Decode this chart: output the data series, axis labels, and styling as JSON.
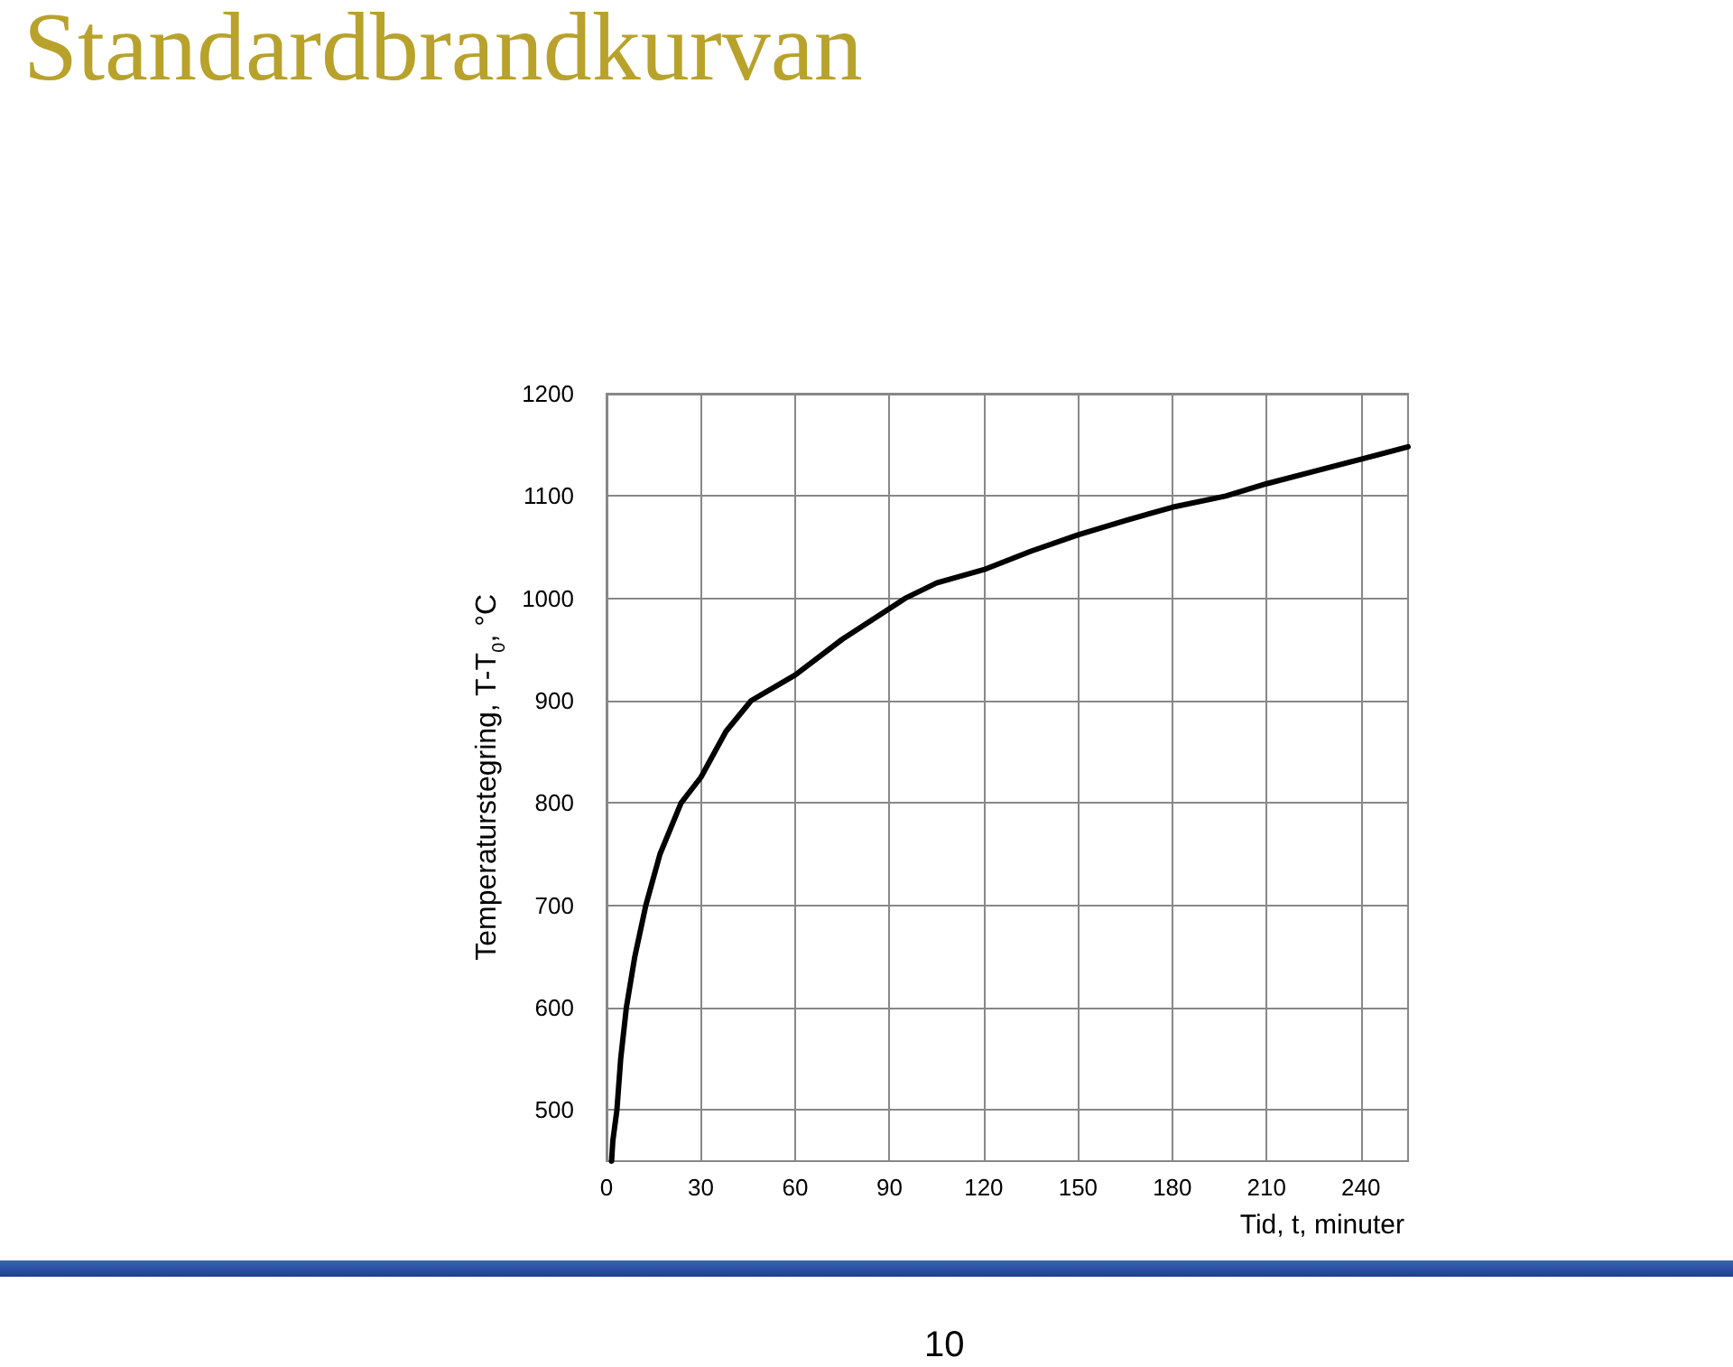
{
  "chart_data": {
    "type": "line",
    "title": "Standardbrandkurvan",
    "xlabel": "Tid, t, minuter",
    "ylabel": "Temperaturstegring, T-T$_{0}$, °C",
    "x": [
      1.6,
      2,
      3.3,
      4.5,
      6.3,
      9,
      12.5,
      17,
      23.7,
      30,
      38,
      46,
      60,
      75,
      95,
      105,
      120,
      135,
      150,
      165,
      180,
      197,
      210,
      225,
      240,
      255
    ],
    "series": [
      {
        "color": "#000000",
        "values": [
          450,
          470,
          500,
          550,
          600,
          650,
          700,
          750,
          800,
          825,
          870,
          900,
          925,
          960,
          1000,
          1015,
          1028,
          1046,
          1062,
          1076,
          1089,
          1100,
          1112,
          1124,
          1136,
          1148
        ]
      }
    ],
    "xlim": [
      0,
      255
    ],
    "xticks": [
      0,
      30,
      60,
      90,
      120,
      150,
      180,
      210,
      240
    ],
    "ylim": [
      450,
      1200
    ],
    "yticks": [
      500,
      600,
      700,
      800,
      900,
      1000,
      1100,
      1200
    ],
    "grid": true,
    "marker": "none",
    "line_style": "solid",
    "annotations": [
      "10"
    ]
  }
}
